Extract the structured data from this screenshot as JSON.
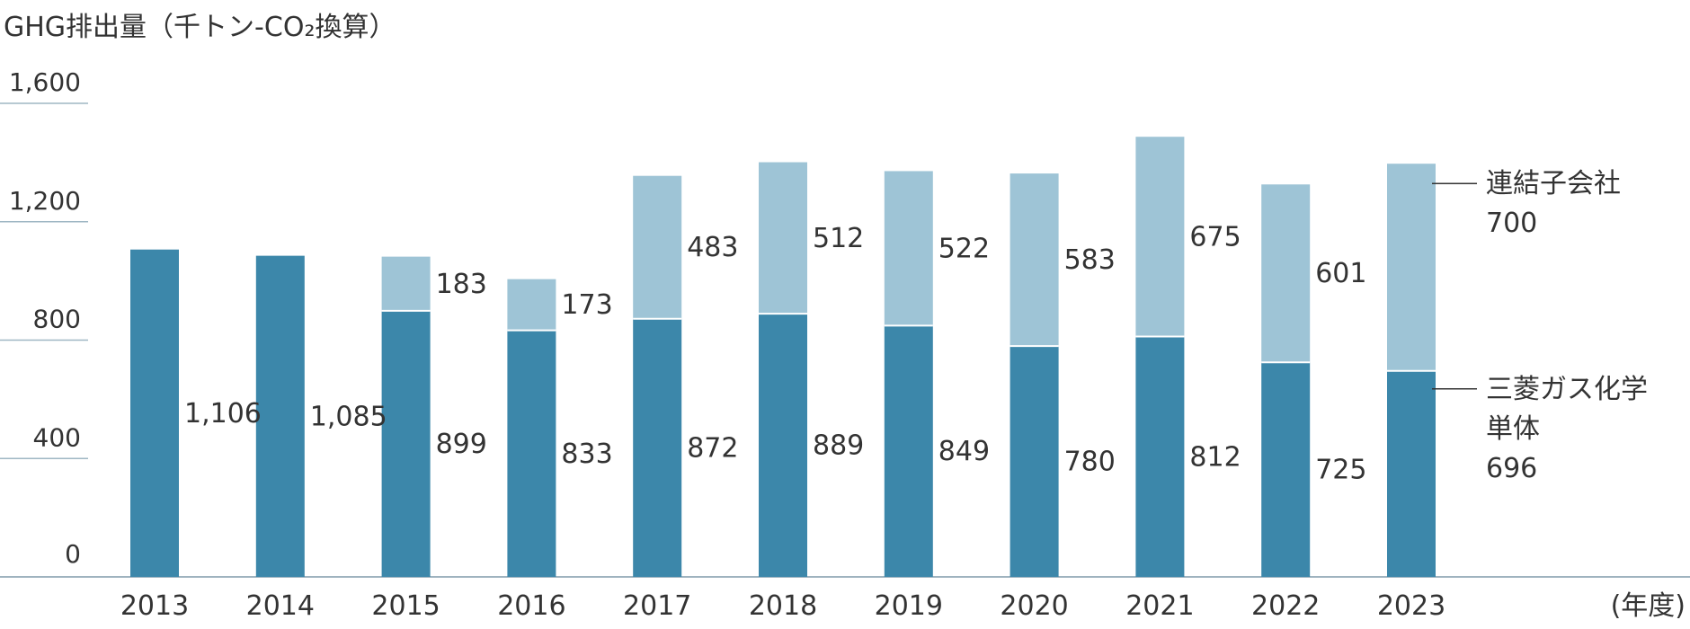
{
  "chart_data": {
    "type": "bar",
    "stacked": true,
    "title": "GHG排出量（千トン-CO₂換算）",
    "x_unit_label": "(年度)",
    "categories": [
      "2013",
      "2014",
      "2015",
      "2016",
      "2017",
      "2018",
      "2019",
      "2020",
      "2021",
      "2022",
      "2023"
    ],
    "y_ticks": [
      "0",
      "400",
      "800",
      "1,200",
      "1,600"
    ],
    "ylim": [
      0,
      1600
    ],
    "grid": false,
    "series": [
      {
        "name": "三菱ガス化学単体",
        "name_lines": [
          "三菱ガス化学",
          "単体"
        ],
        "color": "#3c87aa",
        "values": [
          1106,
          1085,
          899,
          833,
          872,
          889,
          849,
          780,
          812,
          725,
          696
        ],
        "labels": [
          "1,106",
          "1,085",
          "899",
          "833",
          "872",
          "889",
          "849",
          "780",
          "812",
          "725",
          "696"
        ]
      },
      {
        "name": "連結子会社",
        "name_lines": [
          "連結子会社"
        ],
        "color": "#9ec4d6",
        "values": [
          null,
          null,
          183,
          173,
          483,
          512,
          522,
          583,
          675,
          601,
          700
        ],
        "labels": [
          "",
          "",
          "183",
          "173",
          "483",
          "512",
          "522",
          "583",
          "675",
          "601",
          "700"
        ]
      }
    ],
    "legend_placement": "right, at last bar"
  }
}
